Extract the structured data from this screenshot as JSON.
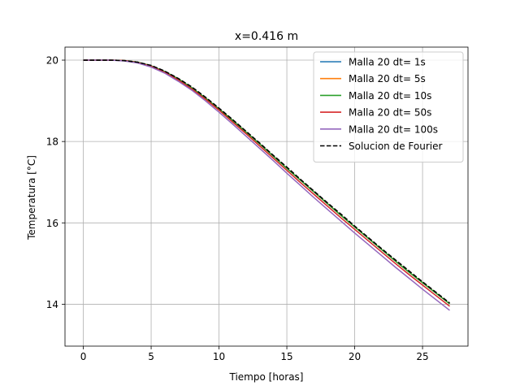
{
  "chart_data": {
    "type": "line",
    "title": "x=0.416 m",
    "xlabel": "Tiempo [horas]",
    "ylabel": "Temperatura [°C]",
    "xlim": [
      -1.35,
      28.35
    ],
    "ylim": [
      12.97,
      20.32
    ],
    "xticks": [
      0,
      5,
      10,
      15,
      20,
      25
    ],
    "yticks": [
      14,
      16,
      18,
      20
    ],
    "grid": true,
    "legend_position": "top-right",
    "series": [
      {
        "name": "Malla 20 dt= 1s",
        "color": "#1f77b4",
        "style": "solid",
        "x": [
          0,
          1,
          2,
          3,
          4,
          5,
          6,
          7,
          8,
          9,
          10,
          11,
          12,
          13,
          14,
          15,
          16,
          17,
          18,
          19,
          20,
          21,
          22,
          23,
          24,
          25,
          26,
          27
        ],
        "y": [
          20.0,
          20.0,
          20.0,
          19.99,
          19.95,
          19.86,
          19.72,
          19.54,
          19.32,
          19.07,
          18.8,
          18.52,
          18.23,
          17.94,
          17.64,
          17.34,
          17.05,
          16.76,
          16.47,
          16.18,
          15.9,
          15.62,
          15.34,
          15.06,
          14.79,
          14.53,
          14.27,
          14.01
        ]
      },
      {
        "name": "Malla 20 dt= 5s",
        "color": "#ff7f0e",
        "style": "solid",
        "x": [
          0,
          1,
          2,
          3,
          4,
          5,
          6,
          7,
          8,
          9,
          10,
          11,
          12,
          13,
          14,
          15,
          16,
          17,
          18,
          19,
          20,
          21,
          22,
          23,
          24,
          25,
          26,
          27
        ],
        "y": [
          20.0,
          20.0,
          20.0,
          19.99,
          19.95,
          19.86,
          19.72,
          19.54,
          19.32,
          19.07,
          18.8,
          18.52,
          18.23,
          17.94,
          17.64,
          17.34,
          17.05,
          16.76,
          16.47,
          16.18,
          15.9,
          15.62,
          15.34,
          15.06,
          14.79,
          14.53,
          14.27,
          14.01
        ]
      },
      {
        "name": "Malla 20 dt= 10s",
        "color": "#2ca02c",
        "style": "solid",
        "x": [
          0,
          1,
          2,
          3,
          4,
          5,
          6,
          7,
          8,
          9,
          10,
          11,
          12,
          13,
          14,
          15,
          16,
          17,
          18,
          19,
          20,
          21,
          22,
          23,
          24,
          25,
          26,
          27
        ],
        "y": [
          20.0,
          20.0,
          20.0,
          19.99,
          19.95,
          19.86,
          19.72,
          19.54,
          19.32,
          19.07,
          18.8,
          18.52,
          18.23,
          17.94,
          17.64,
          17.34,
          17.05,
          16.76,
          16.47,
          16.18,
          15.9,
          15.62,
          15.34,
          15.06,
          14.79,
          14.53,
          14.27,
          14.01
        ]
      },
      {
        "name": "Malla 20 dt= 50s",
        "color": "#d62728",
        "style": "solid",
        "x": [
          0,
          1,
          2,
          3,
          4,
          5,
          6,
          7,
          8,
          9,
          10,
          11,
          12,
          13,
          14,
          15,
          16,
          17,
          18,
          19,
          20,
          21,
          22,
          23,
          24,
          25,
          26,
          27
        ],
        "y": [
          20.0,
          20.0,
          20.0,
          19.99,
          19.94,
          19.85,
          19.7,
          19.51,
          19.29,
          19.04,
          18.77,
          18.48,
          18.19,
          17.89,
          17.59,
          17.29,
          16.99,
          16.7,
          16.41,
          16.12,
          15.84,
          15.56,
          15.28,
          15.0,
          14.73,
          14.47,
          14.21,
          13.95
        ]
      },
      {
        "name": "Malla 20 dt= 100s",
        "color": "#9467bd",
        "style": "solid",
        "x": [
          0,
          1,
          2,
          3,
          4,
          5,
          6,
          7,
          8,
          9,
          10,
          11,
          12,
          13,
          14,
          15,
          16,
          17,
          18,
          19,
          20,
          21,
          22,
          23,
          24,
          25,
          26,
          27
        ],
        "y": [
          20.0,
          20.0,
          20.0,
          19.98,
          19.93,
          19.83,
          19.68,
          19.48,
          19.26,
          19.0,
          18.72,
          18.43,
          18.13,
          17.83,
          17.53,
          17.22,
          16.92,
          16.62,
          16.33,
          16.04,
          15.75,
          15.47,
          15.19,
          14.91,
          14.64,
          14.37,
          14.11,
          13.85
        ]
      },
      {
        "name": "Solucion de Fourier",
        "color": "#000000",
        "style": "dashed",
        "x": [
          0,
          1,
          2,
          3,
          4,
          5,
          6,
          7,
          8,
          9,
          10,
          11,
          12,
          13,
          14,
          15,
          16,
          17,
          18,
          19,
          20,
          21,
          22,
          23,
          24,
          25,
          26,
          27
        ],
        "y": [
          20.0,
          20.0,
          20.0,
          19.99,
          19.95,
          19.87,
          19.73,
          19.55,
          19.34,
          19.09,
          18.82,
          18.54,
          18.25,
          17.96,
          17.66,
          17.37,
          17.07,
          16.78,
          16.49,
          16.21,
          15.92,
          15.64,
          15.36,
          15.09,
          14.82,
          14.55,
          14.29,
          14.03
        ]
      }
    ]
  }
}
